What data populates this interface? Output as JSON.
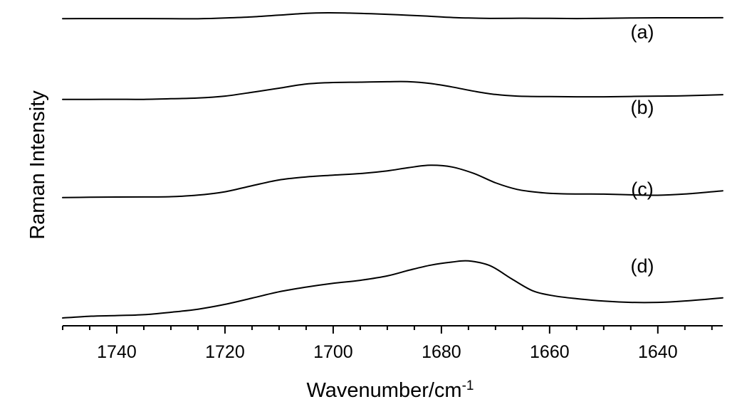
{
  "chart_data": {
    "type": "line",
    "xlabel": "Wavenumber/cm",
    "xlabel_superscript": "-1",
    "ylabel": "Raman Intensity",
    "xlim": [
      1750,
      1628
    ],
    "x_reversed": true,
    "y_ticks_shown": false,
    "grid": false,
    "x_ticks": [
      1740,
      1720,
      1700,
      1680,
      1660,
      1640
    ],
    "x_ticks_minor_step": 5,
    "ylim": [
      0,
      1
    ],
    "series": [
      {
        "name": "(a)",
        "points": [
          [
            1750,
            0.875
          ],
          [
            1745,
            0.877
          ],
          [
            1740,
            0.877
          ],
          [
            1735,
            0.877
          ],
          [
            1730,
            0.874
          ],
          [
            1725,
            0.873
          ],
          [
            1720,
            0.889
          ],
          [
            1715,
            0.912
          ],
          [
            1710,
            0.95
          ],
          [
            1705,
            0.989
          ],
          [
            1701,
            1.0
          ],
          [
            1697,
            0.994
          ],
          [
            1693,
            0.98
          ],
          [
            1688,
            0.958
          ],
          [
            1683,
            0.932
          ],
          [
            1679,
            0.905
          ],
          [
            1675,
            0.889
          ],
          [
            1671,
            0.881
          ],
          [
            1667,
            0.883
          ],
          [
            1663,
            0.884
          ],
          [
            1660,
            0.882
          ],
          [
            1655,
            0.877
          ],
          [
            1650,
            0.882
          ],
          [
            1645,
            0.889
          ],
          [
            1640,
            0.894
          ],
          [
            1635,
            0.894
          ],
          [
            1628,
            0.895
          ]
        ]
      },
      {
        "name": "(b)",
        "points": [
          [
            1750,
            0.588
          ],
          [
            1745,
            0.588
          ],
          [
            1740,
            0.589
          ],
          [
            1735,
            0.588
          ],
          [
            1730,
            0.596
          ],
          [
            1725,
            0.605
          ],
          [
            1720,
            0.63
          ],
          [
            1715,
            0.678
          ],
          [
            1710,
            0.73
          ],
          [
            1705,
            0.783
          ],
          [
            1700,
            0.802
          ],
          [
            1695,
            0.806
          ],
          [
            1690,
            0.812
          ],
          [
            1686,
            0.812
          ],
          [
            1682,
            0.789
          ],
          [
            1678,
            0.745
          ],
          [
            1674,
            0.692
          ],
          [
            1670,
            0.65
          ],
          [
            1666,
            0.63
          ],
          [
            1660,
            0.623
          ],
          [
            1655,
            0.621
          ],
          [
            1650,
            0.621
          ],
          [
            1645,
            0.625
          ],
          [
            1640,
            0.63
          ],
          [
            1635,
            0.634
          ],
          [
            1628,
            0.648
          ]
        ]
      },
      {
        "name": "(c)",
        "points": [
          [
            1750,
            0.305
          ],
          [
            1745,
            0.308
          ],
          [
            1740,
            0.31
          ],
          [
            1735,
            0.311
          ],
          [
            1730,
            0.313
          ],
          [
            1725,
            0.327
          ],
          [
            1720,
            0.357
          ],
          [
            1715,
            0.411
          ],
          [
            1710,
            0.462
          ],
          [
            1705,
            0.489
          ],
          [
            1700,
            0.505
          ],
          [
            1695,
            0.519
          ],
          [
            1690,
            0.543
          ],
          [
            1686,
            0.572
          ],
          [
            1682,
            0.593
          ],
          [
            1678,
            0.577
          ],
          [
            1674,
            0.52
          ],
          [
            1670,
            0.437
          ],
          [
            1666,
            0.378
          ],
          [
            1662,
            0.351
          ],
          [
            1658,
            0.339
          ],
          [
            1654,
            0.337
          ],
          [
            1650,
            0.336
          ],
          [
            1645,
            0.33
          ],
          [
            1640,
            0.326
          ],
          [
            1635,
            0.337
          ],
          [
            1628,
            0.366
          ]
        ]
      },
      {
        "name": "(d)",
        "points": [
          [
            1750,
            0.0
          ],
          [
            1745,
            0.012
          ],
          [
            1740,
            0.017
          ],
          [
            1735,
            0.023
          ],
          [
            1730,
            0.04
          ],
          [
            1725,
            0.062
          ],
          [
            1720,
            0.096
          ],
          [
            1715,
            0.14
          ],
          [
            1710,
            0.185
          ],
          [
            1705,
            0.218
          ],
          [
            1700,
            0.245
          ],
          [
            1695,
            0.266
          ],
          [
            1690,
            0.297
          ],
          [
            1686,
            0.337
          ],
          [
            1682,
            0.373
          ],
          [
            1678,
            0.395
          ],
          [
            1675,
            0.403
          ],
          [
            1671,
            0.369
          ],
          [
            1667,
            0.276
          ],
          [
            1663,
            0.19
          ],
          [
            1659,
            0.155
          ],
          [
            1655,
            0.136
          ],
          [
            1650,
            0.119
          ],
          [
            1645,
            0.11
          ],
          [
            1640,
            0.11
          ],
          [
            1635,
            0.12
          ],
          [
            1628,
            0.142
          ]
        ]
      }
    ]
  }
}
